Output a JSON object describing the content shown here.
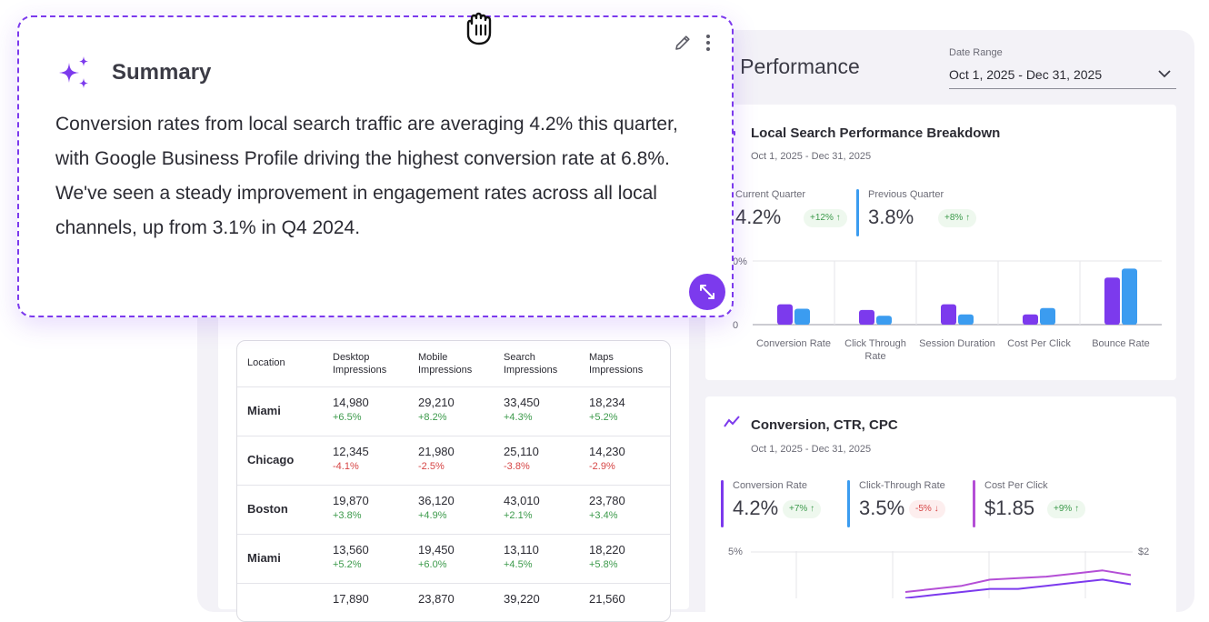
{
  "page": {
    "title": "h Performance"
  },
  "date_range": {
    "label": "Date Range",
    "value": "Oct 1, 2025 - Dec 31, 2025"
  },
  "summary": {
    "title": "Summary",
    "body": "Conversion rates from local search traffic are averaging 4.2% this quarter, with Google Business Profile driving the highest conversion rate at 6.8%. We've seen a steady improvement in engagement rates across all local channels, up from 3.1% in Q4 2024.",
    "accent": "#7c3aed",
    "icons": [
      "sparkle-icon",
      "edit-icon",
      "more-icon",
      "expand-icon",
      "grab-hand-icon"
    ]
  },
  "breakdown": {
    "title": "Local Search Performance Breakdown",
    "subtitle": "Oct 1, 2025 - Dec 31, 2025",
    "metrics": [
      {
        "label": "Current Quarter",
        "value": "4.2%",
        "change": "+12%",
        "color": "#7c3aed"
      },
      {
        "label": "Previous Quarter",
        "value": "3.8%",
        "change": "+8%",
        "color": "#3b9cf0"
      }
    ],
    "axis": {
      "top": "0%",
      "bottom": "0"
    }
  },
  "trend": {
    "title": "Conversion, CTR, CPC",
    "subtitle": "Oct 1, 2025 - Dec 31, 2025",
    "metrics": [
      {
        "label": "Conversion Rate",
        "value": "4.2%",
        "change": "+7%",
        "color": "#7c3aed"
      },
      {
        "label": "Click-Through Rate",
        "value": "3.5%",
        "change": "-5%",
        "color": "#3b9cf0"
      },
      {
        "label": "Cost Per Click",
        "value": "$1.85",
        "change": "+9%",
        "color": "#b44fd6"
      }
    ],
    "axis": {
      "left_top": "5%",
      "right_top": "$2"
    }
  },
  "table": {
    "headers": [
      "Location",
      "Desktop Impressions",
      "Mobile Impressions",
      "Search Impressions",
      "Maps Impressions"
    ],
    "rows": [
      {
        "location": "Miami",
        "cells": [
          [
            "14,980",
            "+6.5%"
          ],
          [
            "29,210",
            "+8.2%"
          ],
          [
            "33,450",
            "+4.3%"
          ],
          [
            "18,234",
            "+5.2%"
          ]
        ]
      },
      {
        "location": "Chicago",
        "cells": [
          [
            "12,345",
            "-4.1%"
          ],
          [
            "21,980",
            "-2.5%"
          ],
          [
            "25,110",
            "-3.8%"
          ],
          [
            "14,230",
            "-2.9%"
          ]
        ]
      },
      {
        "location": "Boston",
        "cells": [
          [
            "19,870",
            "+3.8%"
          ],
          [
            "36,120",
            "+4.9%"
          ],
          [
            "43,010",
            "+2.1%"
          ],
          [
            "23,780",
            "+3.4%"
          ]
        ]
      },
      {
        "location": "Miami",
        "cells": [
          [
            "13,560",
            "+5.2%"
          ],
          [
            "19,450",
            "+6.0%"
          ],
          [
            "13,110",
            "+4.5%"
          ],
          [
            "18,220",
            "+5.8%"
          ]
        ]
      },
      {
        "location": "",
        "cells": [
          [
            "17,890",
            ""
          ],
          [
            "23,870",
            ""
          ],
          [
            "39,220",
            ""
          ],
          [
            "21,560",
            ""
          ]
        ]
      }
    ]
  },
  "chart_data": [
    {
      "type": "bar",
      "title": "Local Search Performance Breakdown",
      "categories": [
        "Conversion Rate",
        "Click Through Rate",
        "Session Duration",
        "Cost Per Click",
        "Bounce Rate"
      ],
      "series": [
        {
          "name": "Current Quarter",
          "color": "#7c3aed",
          "values": [
            0.32,
            0.23,
            0.32,
            0.16,
            0.74
          ]
        },
        {
          "name": "Previous Quarter",
          "color": "#3b9cf0",
          "values": [
            0.25,
            0.14,
            0.16,
            0.26,
            0.88
          ]
        }
      ],
      "ylim": [
        0,
        1
      ]
    },
    {
      "type": "line",
      "title": "Conversion, CTR, CPC",
      "x": [
        0,
        1,
        2,
        3,
        4,
        5,
        6,
        7,
        8
      ],
      "series": [
        {
          "name": "Cost Per Click",
          "color": "#b44fd6",
          "values": [
            0.8,
            0.9,
            1.0,
            1.2,
            1.25,
            1.3,
            1.4,
            1.5,
            1.35
          ]
        },
        {
          "name": "Conversion Rate",
          "color": "#7c3aed",
          "values": [
            0.6,
            0.7,
            0.8,
            0.9,
            0.9,
            1.0,
            1.1,
            1.2,
            1.05
          ]
        }
      ],
      "ylim": [
        0,
        2
      ]
    }
  ]
}
